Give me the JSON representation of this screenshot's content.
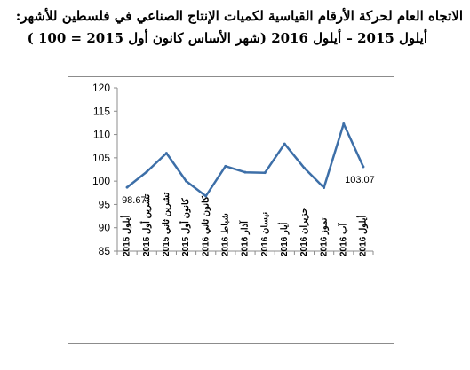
{
  "title": {
    "line1": "الاتجاه العام لحركة الأرقام القياسية لكميات الإنتاج الصناعي في فلسطين للأشهر:",
    "line2": "أيلول 2015 – أيلول 2016 (شهر الأساس كانون أول 2015 = 100 )"
  },
  "chart_data": {
    "type": "line",
    "title": "الاتجاه العام لحركة الأرقام القياسية لكميات الإنتاج الصناعي في فلسطين للأشهر: أيلول 2015 – أيلول 2016 (شهر الأساس كانون أول 2015 = 100 )",
    "xlabel": "",
    "ylabel": "",
    "categories": [
      "أيلول 2015",
      "تشرين أول 2015",
      "تشرين ثاني 2015",
      "كانون أول 2015",
      "كانون ثاني 2016",
      "شباط 2016",
      "آذار 2016",
      "نيسان 2016",
      "أيار 2016",
      "حزيران 2016",
      "تموز 2016",
      "آب 2016",
      "أيلول 2016"
    ],
    "values": [
      98.67,
      102.0,
      106.0,
      100.0,
      96.8,
      103.2,
      101.9,
      101.8,
      108.0,
      102.8,
      98.6,
      112.3,
      103.07
    ],
    "ylim": [
      85,
      120
    ],
    "yticks": [
      85,
      90,
      95,
      100,
      105,
      110,
      115,
      120
    ],
    "grid": false,
    "legend": "none",
    "line_color": "#3d6fa8",
    "data_labels": [
      {
        "index": 0,
        "text": "98.67"
      },
      {
        "index": 12,
        "text": "103.07"
      }
    ]
  }
}
